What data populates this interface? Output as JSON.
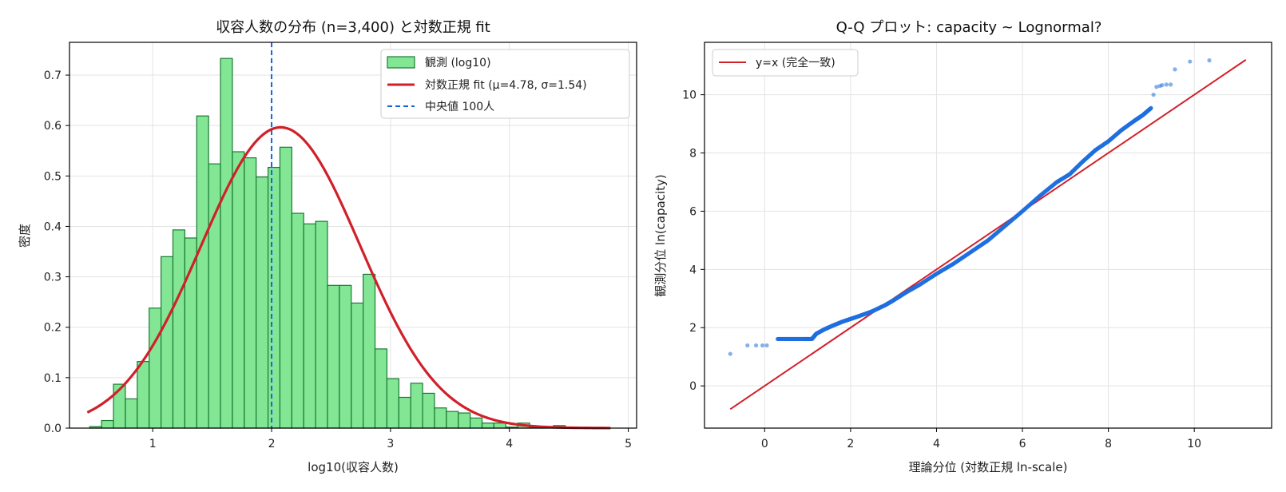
{
  "chart_data": [
    {
      "type": "bar",
      "title": "収容人数の分布 (n=3,400) と対数正規 fit",
      "xlabel": "log10(収容人数)",
      "ylabel": "密度",
      "xlim": [
        0.3,
        5.07
      ],
      "ylim": [
        0,
        0.765
      ],
      "xticks": [
        1,
        2,
        3,
        4,
        5
      ],
      "yticks": [
        0.0,
        0.1,
        0.2,
        0.3,
        0.4,
        0.5,
        0.6,
        0.7
      ],
      "grid": true,
      "legend_position": "top-right",
      "histogram": {
        "name": "観測 (log10)",
        "color": "#82e695",
        "edge_color": "#1a7a32",
        "bins_start": 0.47,
        "bin_width": 0.1,
        "values": [
          0.003,
          0.015,
          0.087,
          0.058,
          0.132,
          0.238,
          0.34,
          0.393,
          0.377,
          0.619,
          0.524,
          0.733,
          0.548,
          0.536,
          0.498,
          0.517,
          0.557,
          0.426,
          0.405,
          0.41,
          0.283,
          0.283,
          0.248,
          0.305,
          0.157,
          0.098,
          0.061,
          0.089,
          0.069,
          0.04,
          0.033,
          0.03,
          0.02,
          0.01,
          0.01,
          0.002,
          0.01,
          0.002,
          0.002,
          0.005
        ]
      },
      "fit_curve": {
        "name": "対数正規 fit (μ=4.78, σ=1.54)",
        "color": "#d1202a",
        "mu_ln": 4.78,
        "sigma_ln": 1.54,
        "x_range": [
          0.45,
          4.85
        ]
      },
      "median_line": {
        "name": "中央値 100人",
        "color": "#1565e0",
        "x": 2.0
      }
    },
    {
      "type": "scatter",
      "title": "Q-Q プロット: capacity ~ Lognormal?",
      "xlabel": "理論分位 (対数正規 ln-scale)",
      "ylabel": "観測分位 ln(capacity)",
      "xlim": [
        -1.4,
        11.8
      ],
      "ylim": [
        -1.45,
        11.8
      ],
      "xticks": [
        0,
        2,
        4,
        6,
        8,
        10
      ],
      "yticks": [
        0,
        2,
        4,
        6,
        8,
        10
      ],
      "grid": true,
      "legend_position": "top-left",
      "reference_line": {
        "name": "y=x (完全一致)",
        "color": "#d1202a",
        "x_range": [
          -0.8,
          11.2
        ]
      },
      "points": {
        "color": "#1f6fe0",
        "series_kind": "sorted quantiles",
        "tail_x": [
          -0.8,
          -0.4,
          -0.2,
          -0.05,
          0.05,
          10.35,
          9.9,
          9.55,
          9.45,
          9.35,
          9.25,
          9.2,
          9.12,
          9.05
        ],
        "tail_y": [
          1.1,
          1.39,
          1.39,
          1.39,
          1.39,
          11.18,
          11.14,
          10.87,
          10.35,
          10.35,
          10.33,
          10.3,
          10.27,
          10.0
        ],
        "body_x": [
          0.3,
          0.6,
          0.9,
          1.1,
          1.2,
          1.4,
          1.6,
          1.8,
          2.0,
          2.2,
          2.5,
          2.8,
          3.0,
          3.3,
          3.6,
          4.0,
          4.4,
          4.8,
          5.2,
          5.6,
          6.0,
          6.4,
          6.8,
          7.1,
          7.4,
          7.7,
          8.0,
          8.3,
          8.6,
          8.8,
          9.0
        ],
        "body_y": [
          1.61,
          1.61,
          1.61,
          1.61,
          1.79,
          1.95,
          2.08,
          2.2,
          2.3,
          2.4,
          2.56,
          2.77,
          2.94,
          3.22,
          3.47,
          3.85,
          4.2,
          4.6,
          5.0,
          5.5,
          6.0,
          6.52,
          7.0,
          7.27,
          7.7,
          8.1,
          8.4,
          8.78,
          9.1,
          9.3,
          9.55
        ]
      }
    }
  ]
}
